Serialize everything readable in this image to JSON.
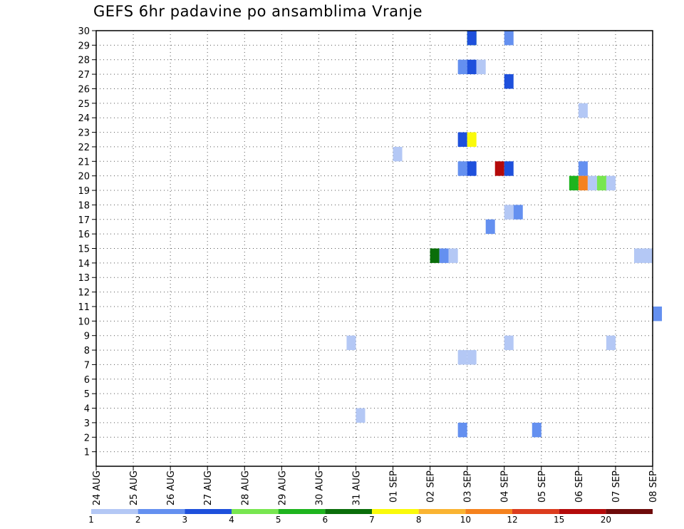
{
  "chart_data": {
    "type": "heatmap",
    "title": "GEFS 6hr padavine po ansamblima Vranje",
    "xlabel": "",
    "ylabel": "",
    "x_ticks": [
      "24 AUG",
      "25 AUG",
      "26 AUG",
      "27 AUG",
      "28 AUG",
      "29 AUG",
      "30 AUG",
      "31 AUG",
      "01 SEP",
      "02 SEP",
      "03 SEP",
      "04 SEP",
      "05 SEP",
      "06 SEP",
      "07 SEP",
      "08 SEP"
    ],
    "y_ticks": [
      "1",
      "2",
      "3",
      "4",
      "5",
      "6",
      "7",
      "8",
      "9",
      "10",
      "11",
      "12",
      "13",
      "14",
      "15",
      "16",
      "17",
      "18",
      "19",
      "20",
      "21",
      "22",
      "23",
      "24",
      "25",
      "26",
      "27",
      "28",
      "29",
      "30"
    ],
    "xlim_hours_from_start": [
      0,
      360
    ],
    "ylim_member": [
      0,
      30
    ],
    "grid": true,
    "colorbar": {
      "position": "bottom",
      "labels": [
        "1",
        "2",
        "3",
        "4",
        "5",
        "6",
        "7",
        "8",
        "10",
        "12",
        "15",
        "20"
      ],
      "colors": [
        "#b4c8f5",
        "#6490f0",
        "#1e50dc",
        "#78e650",
        "#1eb41e",
        "#0a6e0a",
        "#fafa0a",
        "#fab432",
        "#f5821e",
        "#dc3c1e",
        "#b40a0a",
        "#6e0a0a"
      ]
    },
    "cells": [
      {
        "member": 30,
        "x": "03 SEP 00",
        "level": 5
      },
      {
        "member": 30,
        "x": "03 SEP 00",
        "level": 3
      },
      {
        "member": 30,
        "x": "04 SEP 00",
        "level": 2
      },
      {
        "member": 28,
        "x": "02 SEP 18",
        "level": 2
      },
      {
        "member": 28,
        "x": "03 SEP 00",
        "level": 3
      },
      {
        "member": 28,
        "x": "03 SEP 06",
        "level": 1
      },
      {
        "member": 27,
        "x": "04 SEP 00",
        "level": 3
      },
      {
        "member": 25,
        "x": "06 SEP 00",
        "level": 1
      },
      {
        "member": 23,
        "x": "02 SEP 18",
        "level": 3
      },
      {
        "member": 23,
        "x": "03 SEP 00",
        "level": 7
      },
      {
        "member": 22,
        "x": "01 SEP 00",
        "level": 1
      },
      {
        "member": 21,
        "x": "02 SEP 18",
        "level": 2
      },
      {
        "member": 21,
        "x": "03 SEP 00",
        "level": 3
      },
      {
        "member": 21,
        "x": "03 SEP 18",
        "level": 11
      },
      {
        "member": 21,
        "x": "04 SEP 00",
        "level": 3
      },
      {
        "member": 21,
        "x": "06 SEP 00",
        "level": 2
      },
      {
        "member": 20,
        "x": "05 SEP 18",
        "level": 5
      },
      {
        "member": 20,
        "x": "06 SEP 00",
        "level": 9
      },
      {
        "member": 20,
        "x": "06 SEP 06",
        "level": 1
      },
      {
        "member": 20,
        "x": "06 SEP 12",
        "level": 4
      },
      {
        "member": 20,
        "x": "06 SEP 18",
        "level": 1
      },
      {
        "member": 18,
        "x": "04 SEP 00",
        "level": 1
      },
      {
        "member": 18,
        "x": "04 SEP 06",
        "level": 2
      },
      {
        "member": 17,
        "x": "03 SEP 12",
        "level": 2
      },
      {
        "member": 15,
        "x": "02 SEP 00",
        "level": 6
      },
      {
        "member": 15,
        "x": "02 SEP 06",
        "level": 2
      },
      {
        "member": 15,
        "x": "02 SEP 12",
        "level": 1
      },
      {
        "member": 15,
        "x": "07 SEP 12",
        "level": 1
      },
      {
        "member": 15,
        "x": "07 SEP 18",
        "level": 1
      },
      {
        "member": 11,
        "x": "08 SEP 00",
        "level": 1
      },
      {
        "member": 11,
        "x": "08 SEP 00",
        "level": 2
      },
      {
        "member": 9,
        "x": "30 AUG 18",
        "level": 1
      },
      {
        "member": 9,
        "x": "04 SEP 00",
        "level": 1
      },
      {
        "member": 9,
        "x": "06 SEP 18",
        "level": 1
      },
      {
        "member": 8,
        "x": "02 SEP 18",
        "level": 1
      },
      {
        "member": 8,
        "x": "03 SEP 00",
        "level": 1
      },
      {
        "member": 4,
        "x": "31 AUG 00",
        "level": 1
      },
      {
        "member": 3,
        "x": "02 SEP 18",
        "level": 2
      },
      {
        "member": 3,
        "x": "04 SEP 18",
        "level": 2
      }
    ]
  }
}
